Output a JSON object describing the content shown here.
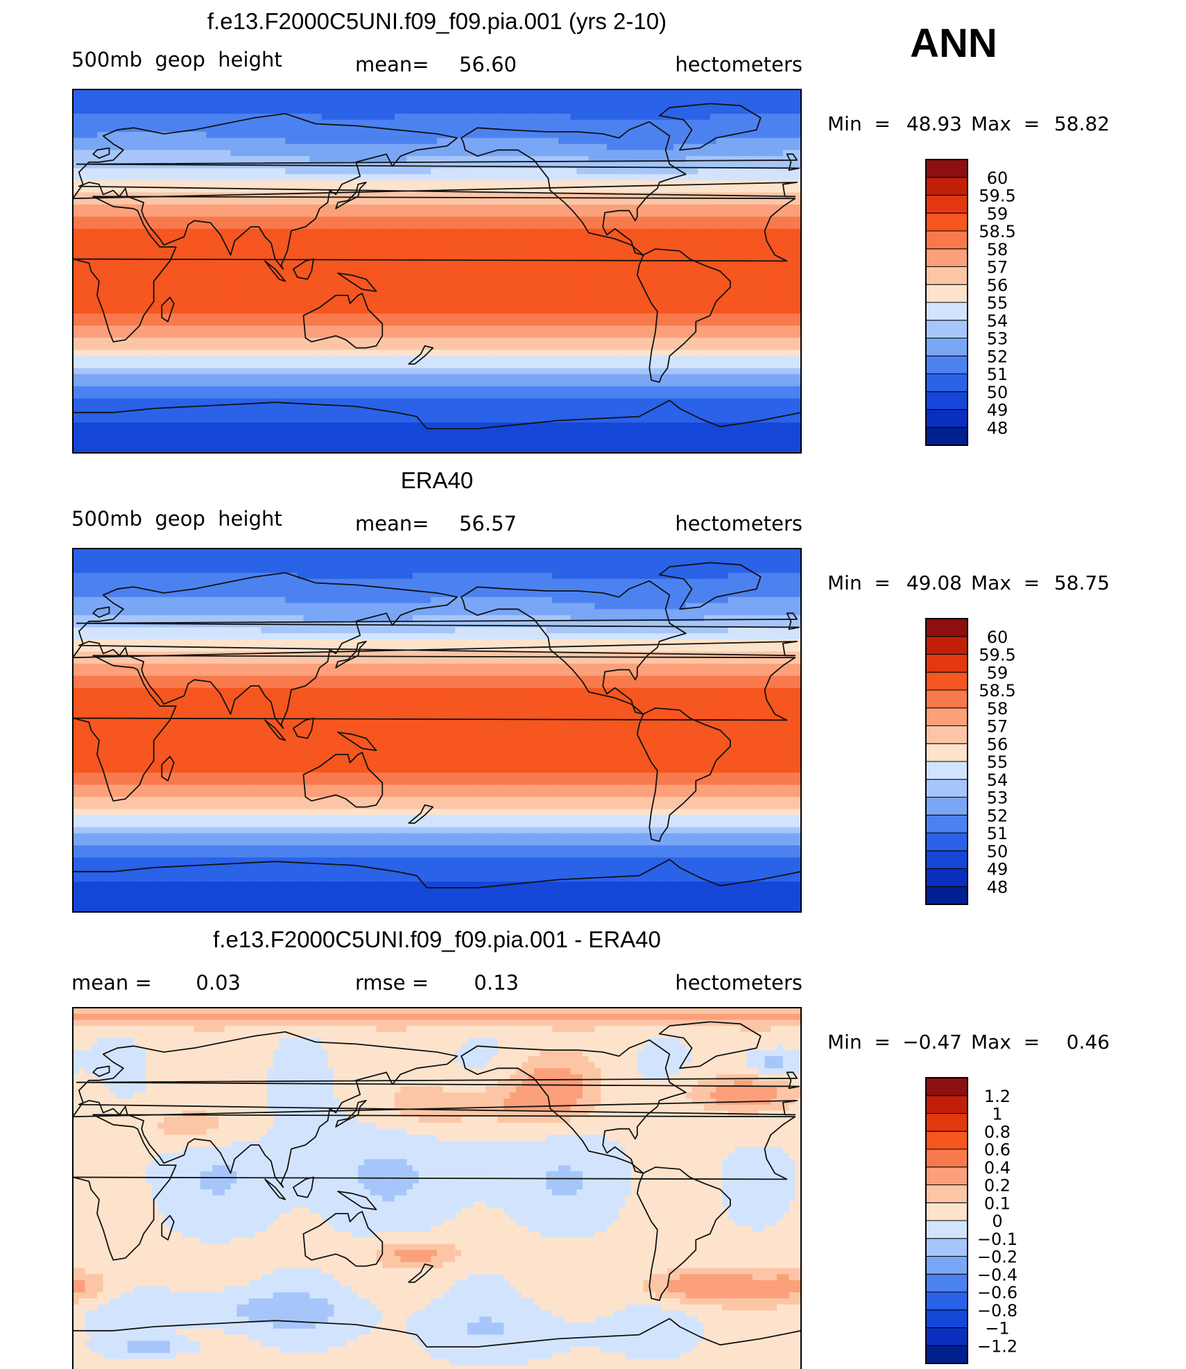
{
  "season": "ANN",
  "land_color": "#111111",
  "chart_data": [
    {
      "type": "heatmap",
      "title": "f.e13.F2000C5UNI.f09_f09.pia.001 (yrs 2-10)",
      "variable": "500mb  geop  height",
      "stat_label": "mean=",
      "stat_value": "56.60",
      "units": "hectometers",
      "min_label": "Min  =",
      "min_value": "48.93",
      "max_label": "Max  =",
      "max_value": "58.82",
      "field": "model",
      "colorbar": {
        "colors": [
          "#00208f",
          "#0a2fbf",
          "#1446d8",
          "#2a62e8",
          "#4c82f0",
          "#7aa6f6",
          "#a6c6fb",
          "#d2e4fd",
          "#fde3cc",
          "#fcc6a6",
          "#fba07a",
          "#f87a4c",
          "#f6561f",
          "#e3380f",
          "#c21f08",
          "#8e0f0f"
        ],
        "labels": [
          "48",
          "49",
          "50",
          "51",
          "52",
          "53",
          "54",
          "55",
          "56",
          "57",
          "58",
          "58.5",
          "59",
          "59.5",
          "60"
        ]
      }
    },
    {
      "type": "heatmap",
      "title": "ERA40",
      "variable": "500mb  geop  height",
      "stat_label": "mean=",
      "stat_value": "56.57",
      "units": "hectometers",
      "min_label": "Min  =",
      "min_value": "49.08",
      "max_label": "Max  =",
      "max_value": "58.75",
      "field": "obs",
      "colorbar": {
        "colors": [
          "#00208f",
          "#0a2fbf",
          "#1446d8",
          "#2a62e8",
          "#4c82f0",
          "#7aa6f6",
          "#a6c6fb",
          "#d2e4fd",
          "#fde3cc",
          "#fcc6a6",
          "#fba07a",
          "#f87a4c",
          "#f6561f",
          "#e3380f",
          "#c21f08",
          "#8e0f0f"
        ],
        "labels": [
          "48",
          "49",
          "50",
          "51",
          "52",
          "53",
          "54",
          "55",
          "56",
          "57",
          "58",
          "58.5",
          "59",
          "59.5",
          "60"
        ]
      }
    },
    {
      "type": "heatmap",
      "title": "f.e13.F2000C5UNI.f09_f09.pia.001 - ERA40",
      "variable": "mean =",
      "variable_value": "0.03",
      "stat_label": "rmse =",
      "stat_value": "0.13",
      "units": "hectometers",
      "min_label": "Min  =",
      "min_value": "−0.47",
      "max_label": "Max  =",
      "max_value": "0.46",
      "field": "diff",
      "colorbar": {
        "colors": [
          "#00208f",
          "#0a2fbf",
          "#1446d8",
          "#2a62e8",
          "#4c82f0",
          "#7aa6f6",
          "#a6c6fb",
          "#d2e4fd",
          "#fde3cc",
          "#fcc6a6",
          "#fba07a",
          "#f87a4c",
          "#f6561f",
          "#e3380f",
          "#c21f08",
          "#8e0f0f"
        ],
        "labels": [
          "−1.2",
          "−1",
          "−0.8",
          "−0.6",
          "−0.4",
          "−0.2",
          "−0.1",
          "0",
          "0.1",
          "0.2",
          "0.4",
          "0.6",
          "0.8",
          "1",
          "1.2"
        ]
      }
    }
  ]
}
